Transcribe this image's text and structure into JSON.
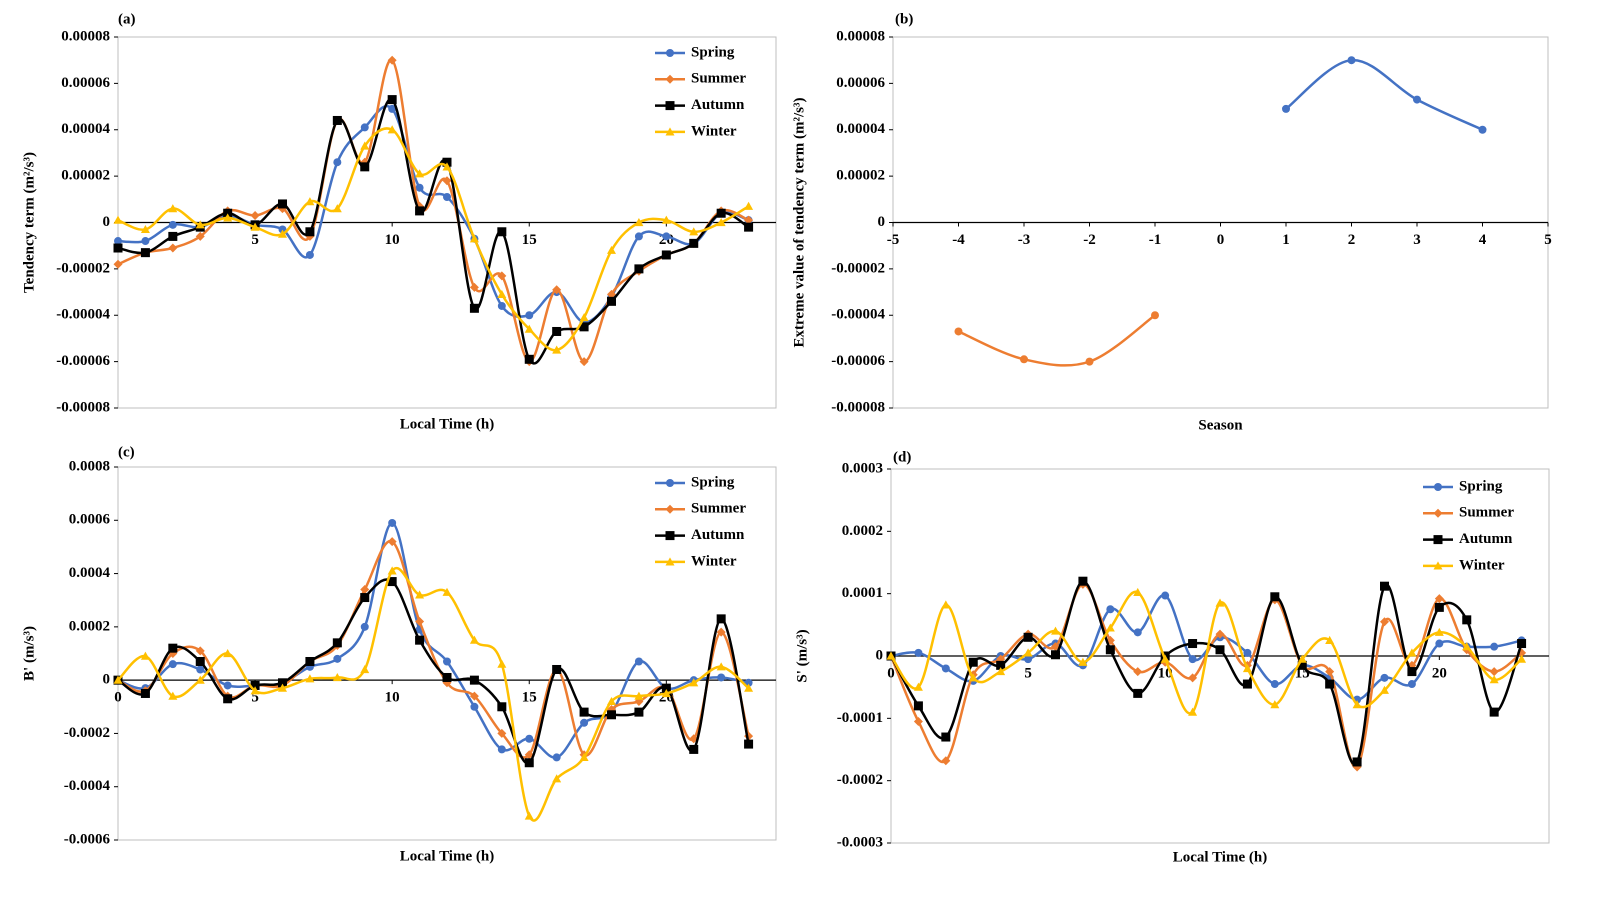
{
  "chart_data": [
    {
      "type": "line",
      "panel_label": "(a)",
      "x_label": "Local Time (h)",
      "y_label": "Tendency term (m²/s³)",
      "x": [
        0,
        1,
        2,
        3,
        4,
        5,
        6,
        7,
        8,
        9,
        10,
        11,
        12,
        13,
        14,
        15,
        16,
        17,
        18,
        19,
        20,
        21,
        22,
        23
      ],
      "xlim": [
        0,
        24
      ],
      "xticks": [
        5,
        10,
        15,
        20
      ],
      "ylim": [
        -8e-05,
        8e-05
      ],
      "yticks": [
        -8e-05,
        -6e-05,
        -4e-05,
        -2e-05,
        0,
        2e-05,
        4e-05,
        6e-05,
        8e-05
      ],
      "legend": "upper right",
      "series": [
        {
          "name": "Spring",
          "color": "#4472c4",
          "marker": "circle",
          "values": [
            -8e-06,
            -8e-06,
            -1e-06,
            -2e-06,
            3e-06,
            -1e-06,
            -3e-06,
            -1.4e-05,
            2.6e-05,
            4.1e-05,
            4.9e-05,
            1.5e-05,
            1.1e-05,
            -7e-06,
            -3.6e-05,
            -4e-05,
            -3e-05,
            -4.3e-05,
            -3.2e-05,
            -6e-06,
            -6e-06,
            -9e-06,
            4e-06,
            1e-06
          ]
        },
        {
          "name": "Summer",
          "color": "#ed7d31",
          "marker": "diamond",
          "values": [
            -1.8e-05,
            -1.3e-05,
            -1.1e-05,
            -6e-06,
            5e-06,
            3e-06,
            6e-06,
            -6e-06,
            4.4e-05,
            2.6e-05,
            7e-05,
            7e-06,
            1.8e-05,
            -2.8e-05,
            -2.3e-05,
            -6e-05,
            -2.9e-05,
            -6e-05,
            -3.1e-05,
            -2.1e-05,
            -1.4e-05,
            -9e-06,
            5e-06,
            1e-06
          ]
        },
        {
          "name": "Autumn",
          "color": "#000000",
          "marker": "square",
          "values": [
            -1.1e-05,
            -1.3e-05,
            -6e-06,
            -2e-06,
            4e-06,
            -1e-06,
            8e-06,
            -4e-06,
            4.4e-05,
            2.4e-05,
            5.3e-05,
            5e-06,
            2.6e-05,
            -3.7e-05,
            -4e-06,
            -5.9e-05,
            -4.7e-05,
            -4.5e-05,
            -3.4e-05,
            -2e-05,
            -1.4e-05,
            -9e-06,
            4e-06,
            -2e-06
          ]
        },
        {
          "name": "Winter",
          "color": "#ffc000",
          "marker": "triangle",
          "values": [
            1e-06,
            -3e-06,
            6e-06,
            -1e-06,
            2e-06,
            -2e-06,
            -5e-06,
            9e-06,
            6e-06,
            3.3e-05,
            4e-05,
            2.1e-05,
            2.4e-05,
            -7e-06,
            -3.1e-05,
            -4.6e-05,
            -5.5e-05,
            -4.1e-05,
            -1.2e-05,
            0,
            1e-06,
            -4e-06,
            0,
            7e-06
          ]
        }
      ]
    },
    {
      "type": "line",
      "panel_label": "(b)",
      "x_label": "Season",
      "y_label": "Extreme value of tendency term (m²/s³)",
      "xlim": [
        -5,
        5
      ],
      "xticks": [
        -5,
        -4,
        -3,
        -2,
        -1,
        0,
        1,
        2,
        3,
        4,
        5
      ],
      "ylim": [
        -8e-05,
        8e-05
      ],
      "yticks": [
        -8e-05,
        -6e-05,
        -4e-05,
        -2e-05,
        0,
        2e-05,
        4e-05,
        6e-05,
        8e-05
      ],
      "series": [
        {
          "color": "#4472c4",
          "marker": "circle",
          "x": [
            1,
            2,
            3,
            4
          ],
          "values": [
            4.9e-05,
            7e-05,
            5.3e-05,
            4e-05
          ]
        },
        {
          "color": "#ed7d31",
          "marker": "circle",
          "x": [
            -4,
            -3,
            -2,
            -1
          ],
          "values": [
            -4.7e-05,
            -5.9e-05,
            -6e-05,
            -4e-05
          ]
        }
      ]
    },
    {
      "type": "line",
      "panel_label": "(c)",
      "x_label": "Local Time (h)",
      "y_label": "B' (m/s³)",
      "x": [
        0,
        1,
        2,
        3,
        4,
        5,
        6,
        7,
        8,
        9,
        10,
        11,
        12,
        13,
        14,
        15,
        16,
        17,
        18,
        19,
        20,
        21,
        22,
        23
      ],
      "xlim": [
        0,
        24
      ],
      "xticks": [
        0,
        5,
        10,
        15,
        20
      ],
      "ylim": [
        -0.0006,
        0.0008
      ],
      "yticks": [
        -0.0006,
        -0.0004,
        -0.0002,
        0,
        0.0002,
        0.0004,
        0.0006,
        0.0008
      ],
      "legend": "upper right",
      "series": [
        {
          "name": "Spring",
          "color": "#4472c4",
          "marker": "circle",
          "values": [
            0,
            -3e-05,
            6e-05,
            4e-05,
            -2e-05,
            -2e-05,
            -1e-05,
            5e-05,
            8e-05,
            0.0002,
            0.00059,
            0.00019,
            7e-05,
            -0.0001,
            -0.00026,
            -0.00022,
            -0.00029,
            -0.00016,
            -0.00012,
            7e-05,
            -3e-05,
            0,
            1e-05,
            -1e-05
          ]
        },
        {
          "name": "Summer",
          "color": "#ed7d31",
          "marker": "diamond",
          "values": [
            0,
            -4e-05,
            0.0001,
            0.00011,
            -6e-05,
            -2e-05,
            -2e-05,
            7e-05,
            0.00013,
            0.00034,
            0.00052,
            0.00022,
            -1e-05,
            -6e-05,
            -0.0002,
            -0.00028,
            4e-05,
            -0.00028,
            -0.00011,
            -8e-05,
            -3e-05,
            -0.00022,
            0.00018,
            -0.00021
          ]
        },
        {
          "name": "Autumn",
          "color": "#000000",
          "marker": "square",
          "values": [
            0,
            -5e-05,
            0.00012,
            7e-05,
            -7e-05,
            -2e-05,
            -1e-05,
            7e-05,
            0.00014,
            0.00031,
            0.00037,
            0.00015,
            1e-05,
            0,
            -0.0001,
            -0.00031,
            4e-05,
            -0.00012,
            -0.00013,
            -0.00012,
            -3e-05,
            -0.00026,
            0.00023,
            -0.00024
          ]
        },
        {
          "name": "Winter",
          "color": "#ffc000",
          "marker": "triangle",
          "values": [
            0,
            9e-05,
            -6e-05,
            0,
            0.0001,
            -4e-05,
            -3e-05,
            5e-06,
            1e-05,
            4e-05,
            0.00041,
            0.00032,
            0.00033,
            0.00015,
            6e-05,
            -0.00051,
            -0.00037,
            -0.00029,
            -8e-05,
            -6e-05,
            -5e-05,
            -1e-05,
            5e-05,
            -3e-05
          ]
        }
      ]
    },
    {
      "type": "line",
      "panel_label": "(d)",
      "x_label": "Local Time (h)",
      "y_label": "S' (m/s³)",
      "x": [
        0,
        1,
        2,
        3,
        4,
        5,
        6,
        7,
        8,
        9,
        10,
        11,
        12,
        13,
        14,
        15,
        16,
        17,
        18,
        19,
        20,
        21,
        22,
        23
      ],
      "xlim": [
        0,
        24
      ],
      "xticks": [
        0,
        5,
        10,
        15,
        20
      ],
      "ylim": [
        -0.0003,
        0.0003
      ],
      "yticks": [
        -0.0003,
        -0.0002,
        -0.0001,
        0,
        0.0001,
        0.0002,
        0.0003
      ],
      "legend": "upper right",
      "series": [
        {
          "name": "Spring",
          "color": "#4472c4",
          "marker": "circle",
          "values": [
            0,
            5e-06,
            -2e-05,
            -4e-05,
            0,
            -5e-06,
            2e-05,
            -1.5e-05,
            7.5e-05,
            3.8e-05,
            9.7e-05,
            -5e-06,
            3e-05,
            5e-06,
            -4.5e-05,
            -1.5e-05,
            -3.5e-05,
            -7e-05,
            -3.5e-05,
            -4.5e-05,
            2e-05,
            1.5e-05,
            1.5e-05,
            2.5e-05
          ]
        },
        {
          "name": "Summer",
          "color": "#ed7d31",
          "marker": "diamond",
          "values": [
            0,
            -0.000105,
            -0.000168,
            -3e-05,
            -5e-06,
            3.5e-05,
            1.5e-05,
            0.000115,
            2.5e-05,
            -2.5e-05,
            -1e-05,
            -3.5e-05,
            3.5e-05,
            -1.5e-05,
            9e-05,
            -1.5e-05,
            -2.5e-05,
            -0.000178,
            5.5e-05,
            -1.5e-05,
            9.2e-05,
            1e-05,
            -2.5e-05,
            5e-06
          ]
        },
        {
          "name": "Autumn",
          "color": "#000000",
          "marker": "square",
          "values": [
            0,
            -8e-05,
            -0.00013,
            -1e-05,
            -1.5e-05,
            3e-05,
            2e-06,
            0.00012,
            1e-05,
            -6e-05,
            0,
            2e-05,
            1e-05,
            -4.5e-05,
            9.5e-05,
            -1.5e-05,
            -4.5e-05,
            -0.00017,
            0.000112,
            -2.5e-05,
            7.8e-05,
            5.8e-05,
            -9e-05,
            2e-05
          ]
        },
        {
          "name": "Winter",
          "color": "#ffc000",
          "marker": "triangle",
          "values": [
            0,
            -5e-05,
            8.2e-05,
            -3.5e-05,
            -2.5e-05,
            5e-06,
            4e-05,
            -1e-05,
            4.5e-05,
            0.000102,
            -5e-06,
            -9e-05,
            8.5e-05,
            -2e-05,
            -7.8e-05,
            -5e-06,
            2.5e-05,
            -7.8e-05,
            -5.5e-05,
            5e-06,
            3.8e-05,
            1.5e-05,
            -3.8e-05,
            -5e-06
          ]
        }
      ]
    }
  ]
}
